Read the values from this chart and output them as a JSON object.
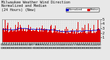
{
  "title": "Milwaukee Weather Wind Direction\nNormalized and Median\n(24 Hours) (New)",
  "title_fontsize": 3.8,
  "background_color": "#e8e8e8",
  "plot_bg_color": "#e8e8e8",
  "bar_color": "#dd0000",
  "median_color": "#0000cc",
  "legend_labels": [
    "Normalized",
    "Median"
  ],
  "legend_colors": [
    "#0000cc",
    "#dd0000"
  ],
  "n_points": 288,
  "ylim": [
    0,
    5
  ],
  "yticks": [
    1,
    2,
    3,
    4,
    5
  ],
  "ylabel_fontsize": 3.5,
  "xlabel_fontsize": 2.8,
  "grid_color": "#bbbbbb",
  "grid_style": ":"
}
